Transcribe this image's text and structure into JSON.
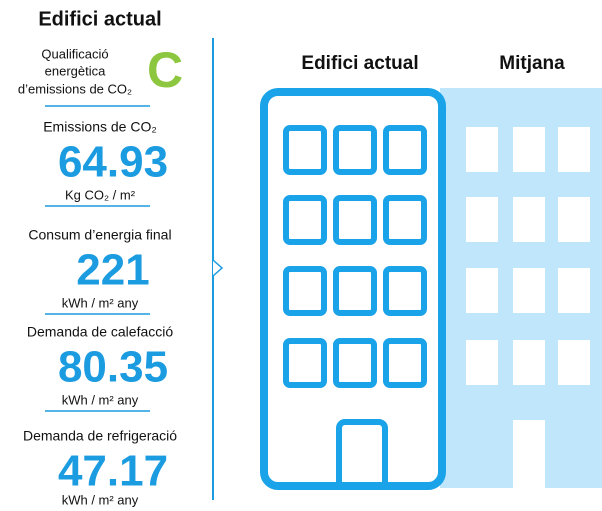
{
  "sidebar": {
    "title": "Edifici actual",
    "rating": {
      "label_lines": [
        "Qualificació",
        "energètica",
        "d’emissions de CO₂"
      ],
      "grade": "C"
    },
    "metrics": [
      {
        "label": "Emissions de CO₂",
        "value": "64.93",
        "unit": "Kg CO₂ / m²"
      },
      {
        "label": "Consum d’energia final",
        "value": "221",
        "unit": "kWh / m² any"
      },
      {
        "label": "Demanda de calefacció",
        "value": "80.35",
        "unit": "kWh / m² any"
      },
      {
        "label": "Demanda de refrigeració",
        "value": "47.17",
        "unit": "kWh / m² any"
      }
    ]
  },
  "comparison": {
    "current": "Edifici actual",
    "average": "Mitjana"
  }
}
